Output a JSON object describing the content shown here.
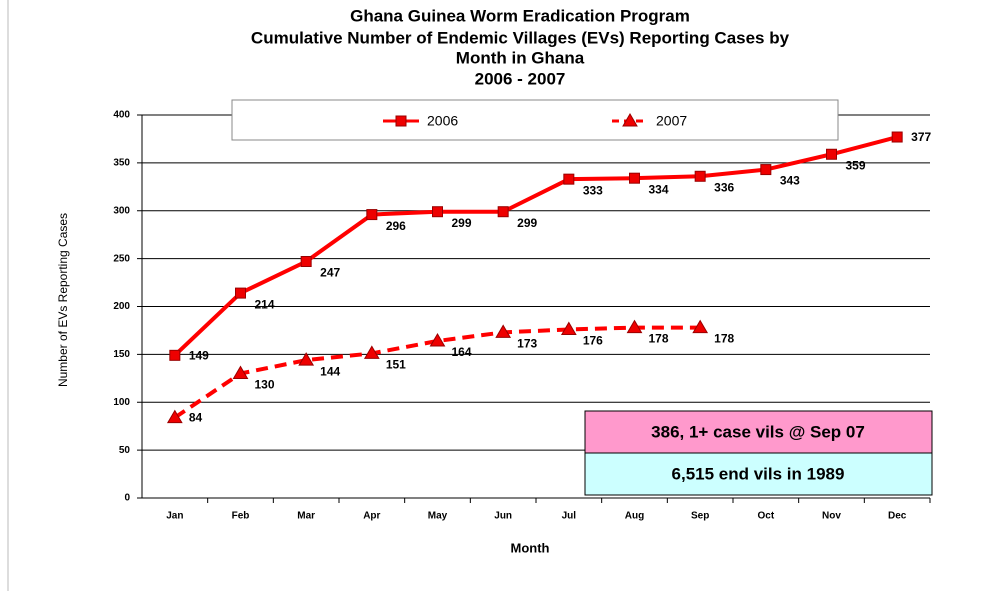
{
  "chart_data": {
    "type": "line",
    "title": [
      "Ghana Guinea Worm Eradication Program",
      "Cumulative Number of Endemic Villages (EVs) Reporting Cases by",
      "Month in Ghana",
      "2006 - 2007"
    ],
    "xlabel": "Month",
    "ylabel": "Number of EVs Reporting Cases",
    "categories": [
      "Jan",
      "Feb",
      "Mar",
      "Apr",
      "May",
      "Jun",
      "Jul",
      "Aug",
      "Sep",
      "Oct",
      "Nov",
      "Dec"
    ],
    "series": [
      {
        "name": "2006",
        "color": "#ff0000",
        "values": [
          149,
          214,
          247,
          296,
          299,
          299,
          333,
          334,
          336,
          343,
          359,
          377
        ]
      },
      {
        "name": "2007",
        "color": "#ff0000",
        "values": [
          84,
          130,
          144,
          151,
          164,
          173,
          176,
          178,
          178,
          null,
          null,
          null
        ]
      }
    ],
    "ylim": [
      0,
      400
    ],
    "yticks": [
      0,
      50,
      100,
      150,
      200,
      250,
      300,
      350,
      400
    ],
    "grid": true,
    "legend": "top",
    "annotations": [
      {
        "text": "386, 1+ case vils @ Sep 07",
        "color": "#ff99cc"
      },
      {
        "text": "6,515 end vils in 1989",
        "color": "#ccffff"
      }
    ]
  }
}
